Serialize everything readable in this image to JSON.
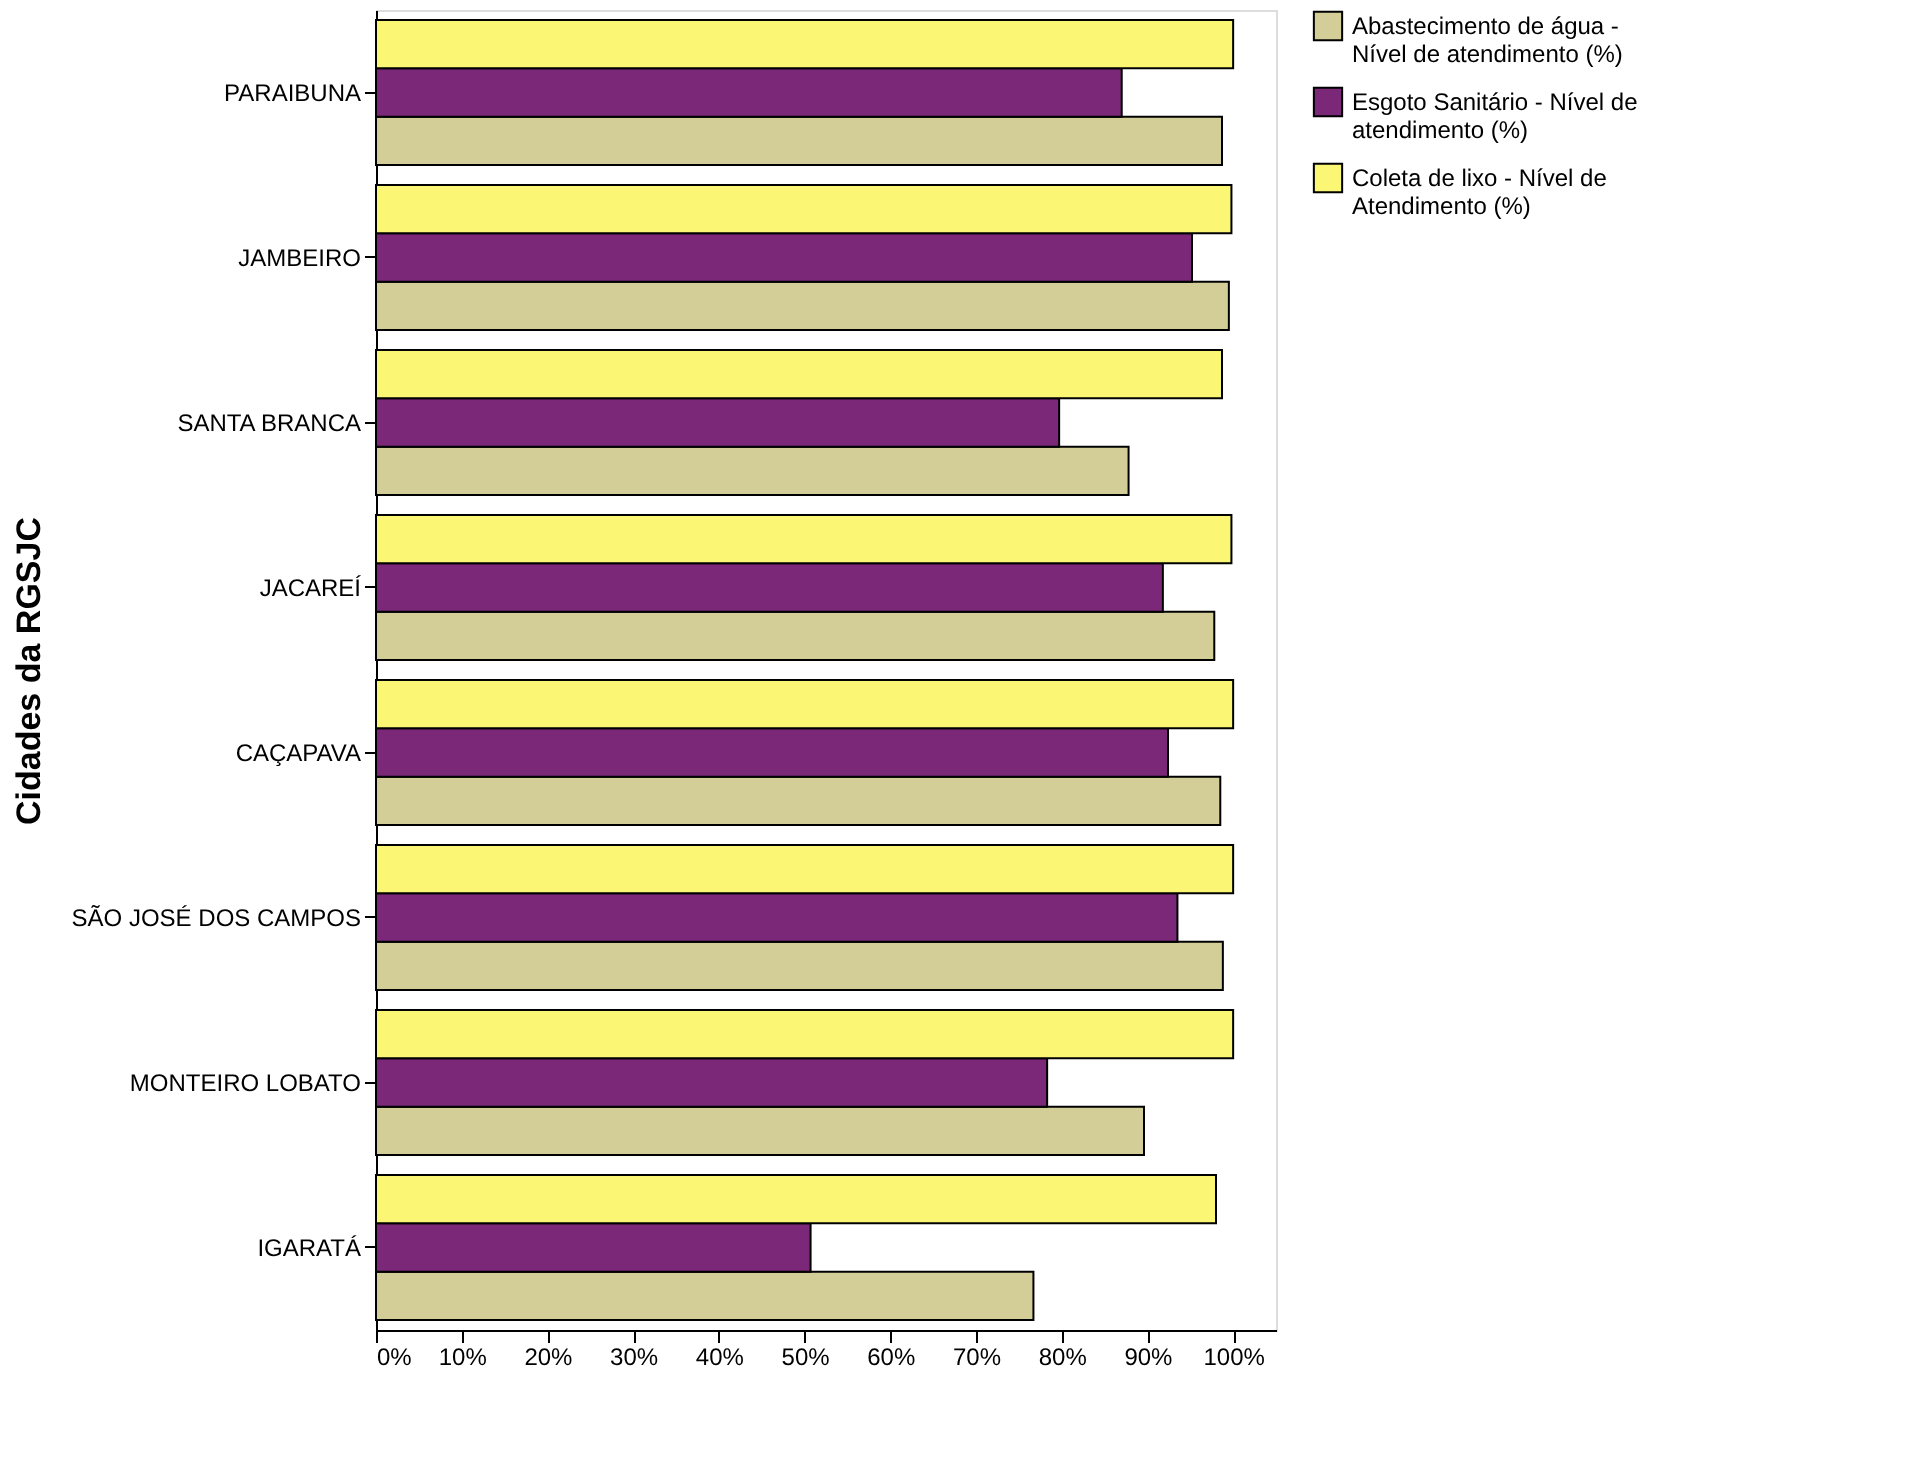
{
  "chart_data": {
    "type": "bar",
    "orientation": "horizontal",
    "ylabel": "Cidades da RGSJC",
    "categories": [
      "PARAIBUNA",
      "JAMBEIRO",
      "SANTA BRANCA",
      "JACAREÍ",
      "CAÇAPAVA",
      "SÃO JOSÉ DOS CAMPOS",
      "MONTEIRO LOBATO",
      "IGARATÁ"
    ],
    "series": [
      {
        "name": "Abastecimento de água - Nível de atendimento (%)",
        "color": "#d3ce97",
        "values": [
          98.7,
          99.5,
          87.8,
          97.8,
          98.5,
          98.8,
          89.6,
          76.7
        ]
      },
      {
        "name": "Esgoto Sanitário - Nível de atendimento (%)",
        "color": "#7b2878",
        "values": [
          87,
          95.2,
          79.7,
          91.8,
          92.4,
          93.5,
          78.3,
          50.7
        ]
      },
      {
        "name": "Coleta de lixo - Nível de Atendimento (%)",
        "color": "#fbf774",
        "values": [
          100,
          99.8,
          98.7,
          99.8,
          100,
          100,
          100,
          98
        ]
      }
    ],
    "xlim": [
      0,
      105
    ],
    "xticks": [
      {
        "value": 0,
        "label": "0%"
      },
      {
        "value": 10,
        "label": "10%"
      },
      {
        "value": 20,
        "label": "20%"
      },
      {
        "value": 30,
        "label": "30%"
      },
      {
        "value": 40,
        "label": "40%"
      },
      {
        "value": 50,
        "label": "50%"
      },
      {
        "value": 60,
        "label": "60%"
      },
      {
        "value": 70,
        "label": "70%"
      },
      {
        "value": 80,
        "label": "80%"
      },
      {
        "value": 90,
        "label": "90%"
      },
      {
        "value": 100,
        "label": "100%"
      }
    ],
    "grid": false,
    "legend": "top right"
  }
}
